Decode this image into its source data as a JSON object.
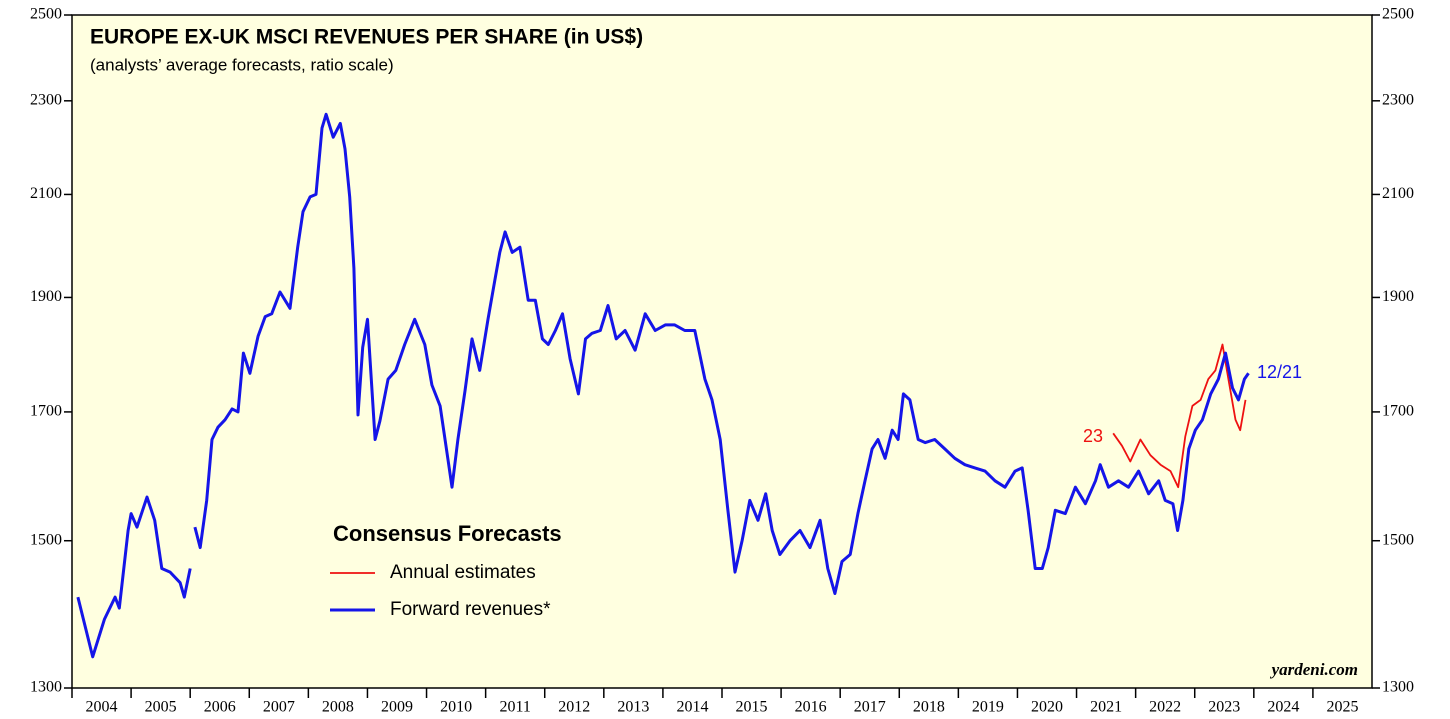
{
  "chart_data": {
    "type": "line",
    "title": "EUROPE EX-UK MSCI REVENUES PER SHARE (in US$)",
    "subtitle": "(analysts’ average forecasts, ratio scale)",
    "legend_title": "Consensus Forecasts",
    "annotations": {
      "estimate_year": "23",
      "last_date": "12/21",
      "source": "yardeni.com"
    },
    "log_scale": true,
    "xlim": [
      2004,
      2026
    ],
    "xticks": [
      2004,
      2005,
      2006,
      2007,
      2008,
      2009,
      2010,
      2011,
      2012,
      2013,
      2014,
      2015,
      2016,
      2017,
      2018,
      2019,
      2020,
      2021,
      2022,
      2023,
      2024,
      2025
    ],
    "ylim": [
      1300,
      2500
    ],
    "yticks": [
      1300,
      1500,
      1700,
      1900,
      2100,
      2300,
      2500
    ],
    "series": [
      {
        "name": "Annual estimates",
        "color": "#ee1111",
        "x": [
          2021.62,
          2021.77,
          2021.91,
          2022.08,
          2022.25,
          2022.42,
          2022.59,
          2022.72,
          2022.84,
          2022.96,
          2023.1,
          2023.23,
          2023.35,
          2023.47,
          2023.57,
          2023.69,
          2023.77,
          2023.86
        ],
        "values": [
          1665,
          1645,
          1620,
          1655,
          1630,
          1615,
          1605,
          1580,
          1660,
          1710,
          1720,
          1755,
          1770,
          1815,
          1755,
          1687,
          1670,
          1720
        ]
      },
      {
        "name": "Forward revenues*",
        "color": "#1515e8",
        "x": [
          2004.1,
          2004.35,
          2004.55,
          2004.73,
          2004.8,
          2004.95,
          2005.0,
          2005.1,
          2005.27,
          2005.4,
          2005.52,
          2005.66,
          2005.83,
          2005.9,
          2006.0,
          2006.04,
          2006.08,
          2006.17,
          2006.28,
          2006.37,
          2006.47,
          2006.59,
          2006.71,
          2006.81,
          2006.9,
          2007.01,
          2007.15,
          2007.27,
          2007.38,
          2007.52,
          2007.69,
          2007.82,
          2007.91,
          2008.03,
          2008.13,
          2008.23,
          2008.3,
          2008.42,
          2008.54,
          2008.62,
          2008.7,
          2008.77,
          2008.84,
          2008.92,
          2009.0,
          2009.13,
          2009.21,
          2009.35,
          2009.48,
          2009.63,
          2009.8,
          2009.97,
          2010.09,
          2010.23,
          2010.36,
          2010.43,
          2010.53,
          2010.65,
          2010.77,
          2010.9,
          2011.04,
          2011.16,
          2011.24,
          2011.33,
          2011.45,
          2011.58,
          2011.72,
          2011.84,
          2011.96,
          2012.06,
          2012.18,
          2012.3,
          2012.43,
          2012.57,
          2012.69,
          2012.8,
          2012.94,
          2013.07,
          2013.21,
          2013.36,
          2013.53,
          2013.7,
          2013.87,
          2014.04,
          2014.2,
          2014.37,
          2014.54,
          2014.71,
          2014.83,
          2014.97,
          2015.1,
          2015.22,
          2015.34,
          2015.47,
          2015.61,
          2015.74,
          2015.85,
          2015.98,
          2016.15,
          2016.32,
          2016.49,
          2016.66,
          2016.79,
          2016.91,
          2017.03,
          2017.17,
          2017.3,
          2017.42,
          2017.54,
          2017.64,
          2017.76,
          2017.88,
          2017.98,
          2018.07,
          2018.18,
          2018.32,
          2018.44,
          2018.6,
          2018.77,
          2018.94,
          2019.11,
          2019.28,
          2019.45,
          2019.62,
          2019.79,
          2019.96,
          2020.08,
          2020.18,
          2020.3,
          2020.42,
          2020.52,
          2020.64,
          2020.81,
          2020.98,
          2021.15,
          2021.32,
          2021.4,
          2021.54,
          2021.71,
          2021.88,
          2022.05,
          2022.22,
          2022.39,
          2022.5,
          2022.63,
          2022.71,
          2022.8,
          2022.9,
          2023.01,
          2023.13,
          2023.27,
          2023.4,
          2023.52,
          2023.64,
          2023.74,
          2023.84,
          2023.91
        ],
        "values": [
          1420,
          1340,
          1390,
          1420,
          1405,
          1515,
          1540,
          1520,
          1565,
          1530,
          1460,
          1455,
          1440,
          1420,
          1460,
          null,
          1520,
          1490,
          1560,
          1655,
          1675,
          1687,
          1705,
          1700,
          1800,
          1765,
          1830,
          1865,
          1870,
          1910,
          1880,
          1995,
          2065,
          2095,
          2100,
          2240,
          2270,
          2220,
          2250,
          2195,
          2095,
          1955,
          1695,
          1810,
          1860,
          1655,
          1685,
          1755,
          1770,
          1815,
          1860,
          1815,
          1745,
          1710,
          1625,
          1580,
          1655,
          1735,
          1825,
          1770,
          1860,
          1935,
          1985,
          2025,
          1985,
          1995,
          1895,
          1895,
          1825,
          1815,
          1840,
          1870,
          1790,
          1730,
          1825,
          1835,
          1840,
          1885,
          1825,
          1840,
          1805,
          1870,
          1840,
          1850,
          1850,
          1840,
          1840,
          1755,
          1720,
          1655,
          1545,
          1455,
          1500,
          1560,
          1530,
          1570,
          1515,
          1480,
          1500,
          1515,
          1490,
          1530,
          1460,
          1425,
          1470,
          1480,
          1540,
          1590,
          1640,
          1655,
          1625,
          1670,
          1655,
          1730,
          1720,
          1655,
          1650,
          1655,
          1640,
          1625,
          1615,
          1610,
          1605,
          1590,
          1580,
          1605,
          1610,
          1545,
          1460,
          1460,
          1490,
          1545,
          1540,
          1580,
          1555,
          1590,
          1615,
          1580,
          1590,
          1580,
          1605,
          1570,
          1590,
          1560,
          1555,
          1515,
          1560,
          1640,
          1670,
          1687,
          1730,
          1755,
          1800,
          1740,
          1720,
          1755,
          1765
        ]
      }
    ]
  }
}
